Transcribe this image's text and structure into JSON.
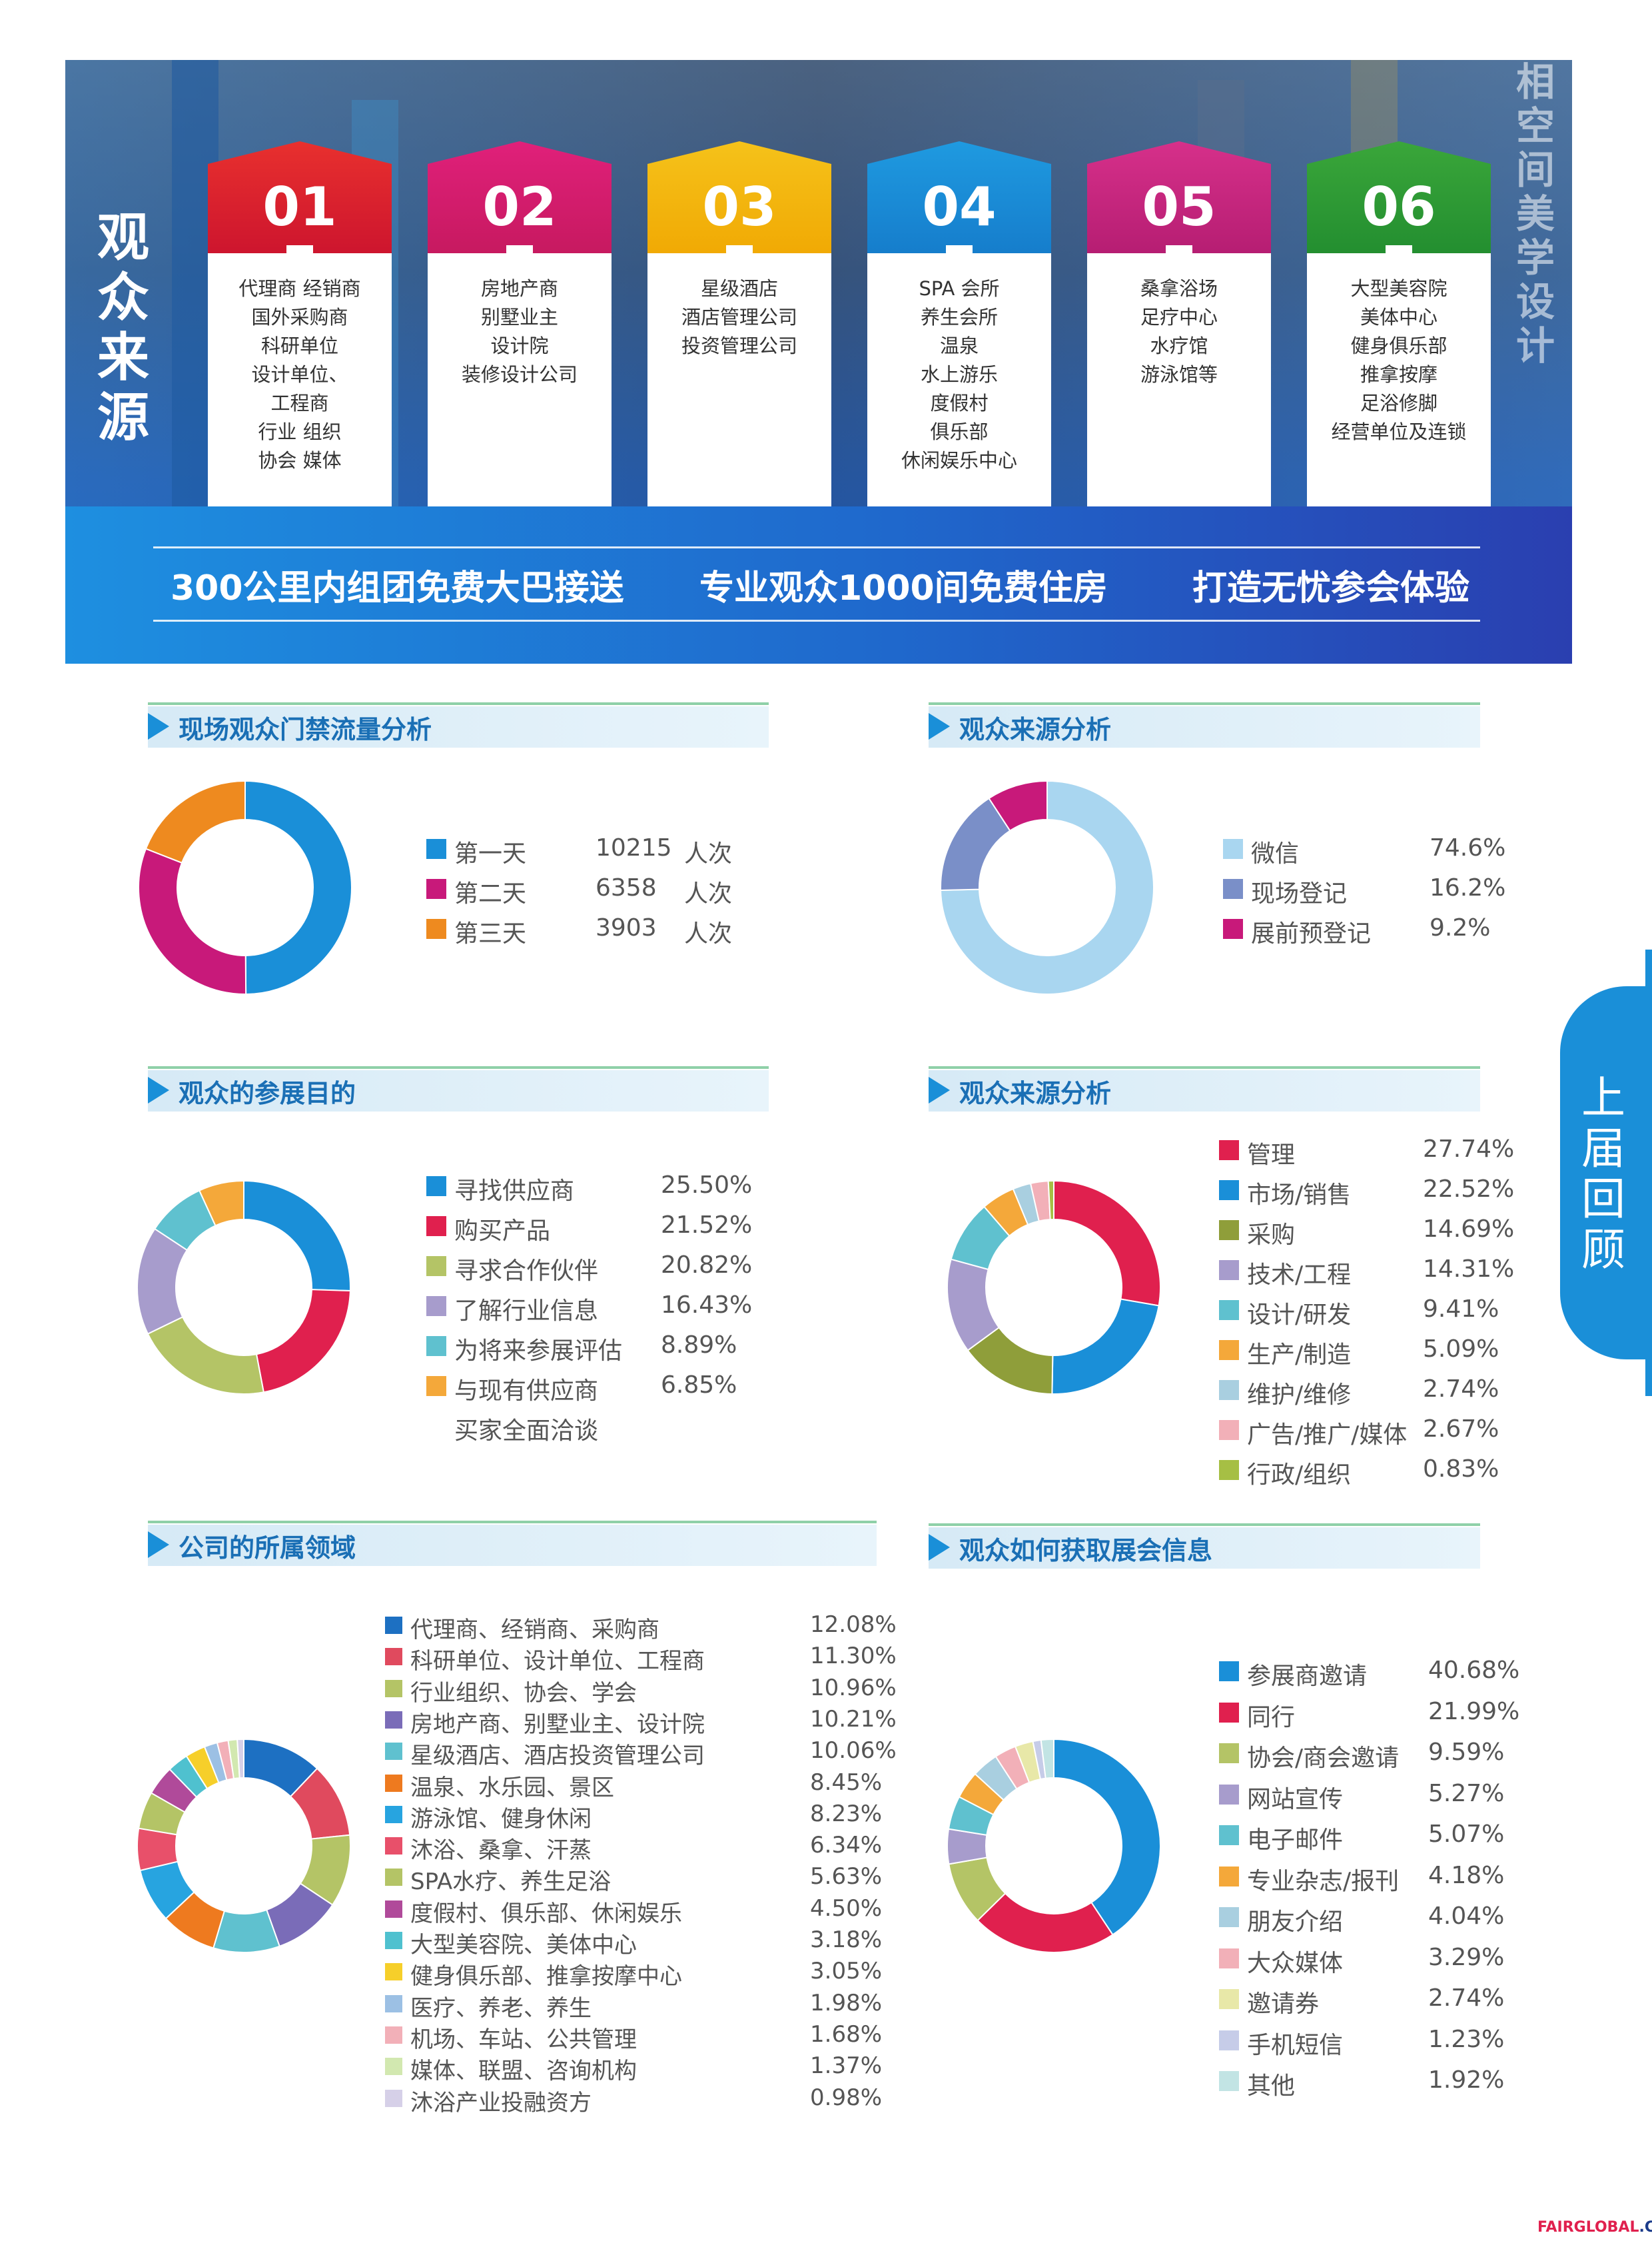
{
  "hero": {
    "title": "观众来源",
    "backdrop_text": "相空间美学设计",
    "cards": [
      {
        "num": "01",
        "color": "#e8302e",
        "color2": "#c8102e",
        "items": [
          "代理商  经销商",
          "国外采购商",
          "科研单位",
          "设计单位、",
          "工程商",
          "行业  组织",
          "协会  媒体"
        ]
      },
      {
        "num": "02",
        "color": "#e0207a",
        "color2": "#c2185b",
        "items": [
          "房地产商",
          "别墅业主",
          "设计院",
          "装修设计公司"
        ]
      },
      {
        "num": "03",
        "color": "#f5c21a",
        "color2": "#f0a500",
        "items": [
          "星级酒店",
          "酒店管理公司",
          "投资管理公司"
        ]
      },
      {
        "num": "04",
        "color": "#1f9ae0",
        "color2": "#1478c8",
        "items": [
          "SPA 会所",
          "养生会所",
          "温泉",
          "水上游乐",
          "度假村",
          "俱乐部",
          "休闲娱乐中心"
        ]
      },
      {
        "num": "05",
        "color": "#d6308a",
        "color2": "#b01a6e",
        "items": [
          "桑拿浴场",
          "足疗中心",
          "水疗馆",
          "游泳馆等"
        ]
      },
      {
        "num": "06",
        "color": "#3aa63a",
        "color2": "#1f8a2e",
        "items": [
          "大型美容院",
          "美体中心",
          "健身俱乐部",
          "推拿按摩",
          "足浴修脚",
          "经营单位及连锁"
        ]
      }
    ],
    "slogans": [
      "300公里内组团免费大巴接送",
      "专业观众1000间免费住房",
      "打造无忧参会体验"
    ]
  },
  "side_tab": "上届回顾",
  "footer": {
    "brand": "FAIRGLOBAL",
    "domain": ".COM.CN"
  },
  "chart_data": [
    {
      "id": "traffic",
      "type": "pie",
      "title": "现场观众门禁流量分析",
      "categories": [
        "第一天",
        "第二天",
        "第三天"
      ],
      "values": [
        10215,
        6358,
        3903
      ],
      "value_labels": [
        "10215",
        "6358",
        "3903"
      ],
      "unit": "人次",
      "colors": [
        "#1a8fd8",
        "#c8197a",
        "#ee8a1f"
      ]
    },
    {
      "id": "source",
      "type": "pie",
      "title": "观众来源分析",
      "categories": [
        "微信",
        "现场登记",
        "展前预登记"
      ],
      "values": [
        74.6,
        16.2,
        9.2
      ],
      "value_labels": [
        "74.6%",
        "16.2%",
        "9.2%"
      ],
      "colors": [
        "#a9d6f0",
        "#7a8fc8",
        "#c8197a"
      ]
    },
    {
      "id": "purpose",
      "type": "pie",
      "title": "观众的参展目的",
      "categories": [
        "寻找供应商",
        "购买产品",
        "寻求合作伙伴",
        "了解行业信息",
        "为将来参展评估",
        "与现有供应商"
      ],
      "extra_line": "买家全面洽谈",
      "values": [
        25.5,
        21.52,
        20.82,
        16.43,
        8.89,
        6.85
      ],
      "value_labels": [
        "25.50%",
        "21.52%",
        "20.82%",
        "16.43%",
        "8.89%",
        "6.85%"
      ],
      "colors": [
        "#1a8fd8",
        "#e0204e",
        "#b4c466",
        "#a79ccc",
        "#5fc1cf",
        "#f4a83a"
      ]
    },
    {
      "id": "role",
      "type": "pie",
      "title": "观众来源分析",
      "categories": [
        "管理",
        "市场/销售",
        "采购",
        "技术/工程",
        "设计/研发",
        "生产/制造",
        "维护/维修",
        "广告/推广/媒体",
        "行政/组织"
      ],
      "values": [
        27.74,
        22.52,
        14.69,
        14.31,
        9.41,
        5.09,
        2.74,
        2.67,
        0.83
      ],
      "value_labels": [
        "27.74%",
        "22.52%",
        "14.69%",
        "14.31%",
        "9.41%",
        "5.09%",
        "2.74%",
        "2.67%",
        "0.83%"
      ],
      "colors": [
        "#e0204e",
        "#1a8fd8",
        "#8f9e3a",
        "#a79ccc",
        "#5fc1cf",
        "#f4a83a",
        "#a9cfe0",
        "#f2b0b8",
        "#a6bf44"
      ]
    },
    {
      "id": "industry",
      "type": "pie",
      "title": "公司的所属领域",
      "categories": [
        "代理商、经销商、采购商",
        "科研单位、设计单位、工程商",
        "行业组织、协会、学会",
        "房地产商、别墅业主、设计院",
        "星级酒店、酒店投资管理公司",
        "温泉、水乐园、景区",
        "游泳馆、健身休闲",
        "沐浴、桑拿、汗蒸",
        "SPA水疗、养生足浴",
        "度假村、俱乐部、休闲娱乐",
        "大型美容院、美体中心",
        "健身俱乐部、推拿按摩中心",
        "医疗、养老、养生",
        "机场、车站、公共管理",
        "媒体、联盟、咨询机构",
        "沐浴产业投融资方"
      ],
      "values": [
        12.08,
        11.3,
        10.96,
        10.21,
        10.06,
        8.45,
        8.23,
        6.34,
        5.63,
        4.5,
        3.18,
        3.05,
        1.98,
        1.68,
        1.37,
        0.98
      ],
      "value_labels": [
        "12.08%",
        "11.30%",
        "10.96%",
        "10.21%",
        "10.06%",
        "8.45%",
        "8.23%",
        "6.34%",
        "5.63%",
        "4.50%",
        "3.18%",
        "3.05%",
        "1.98%",
        "1.68%",
        "1.37%",
        "0.98%"
      ],
      "colors": [
        "#1d70c2",
        "#e04a5e",
        "#b4c466",
        "#7a6cb8",
        "#5fc1cf",
        "#ee7a1f",
        "#27a4e0",
        "#e8506a",
        "#b4c466",
        "#b04a9a",
        "#4fc1cf",
        "#f6cf2a",
        "#9cc0e4",
        "#f2b0b8",
        "#d2e8b0",
        "#d6d0e8"
      ]
    },
    {
      "id": "channel",
      "type": "pie",
      "title": "观众如何获取展会信息",
      "categories": [
        "参展商邀请",
        "同行",
        "协会/商会邀请",
        "网站宣传",
        "电子邮件",
        "专业杂志/报刊",
        "朋友介绍",
        "大众媒体",
        "邀请券",
        "手机短信",
        "其他"
      ],
      "values": [
        40.68,
        21.99,
        9.59,
        5.27,
        5.07,
        4.18,
        4.04,
        3.29,
        2.74,
        1.23,
        1.92
      ],
      "value_labels": [
        "40.68%",
        "21.99%",
        "9.59%",
        "5.27%",
        "5.07%",
        "4.18%",
        "4.04%",
        "3.29%",
        "2.74%",
        "1.23%",
        "1.92%"
      ],
      "colors": [
        "#1a8fd8",
        "#e0204e",
        "#b4c466",
        "#a79ccc",
        "#5fc1cf",
        "#f4a83a",
        "#a9cfe0",
        "#f2b0b8",
        "#e8e8a8",
        "#c6cce8",
        "#c2e4e4"
      ]
    }
  ]
}
